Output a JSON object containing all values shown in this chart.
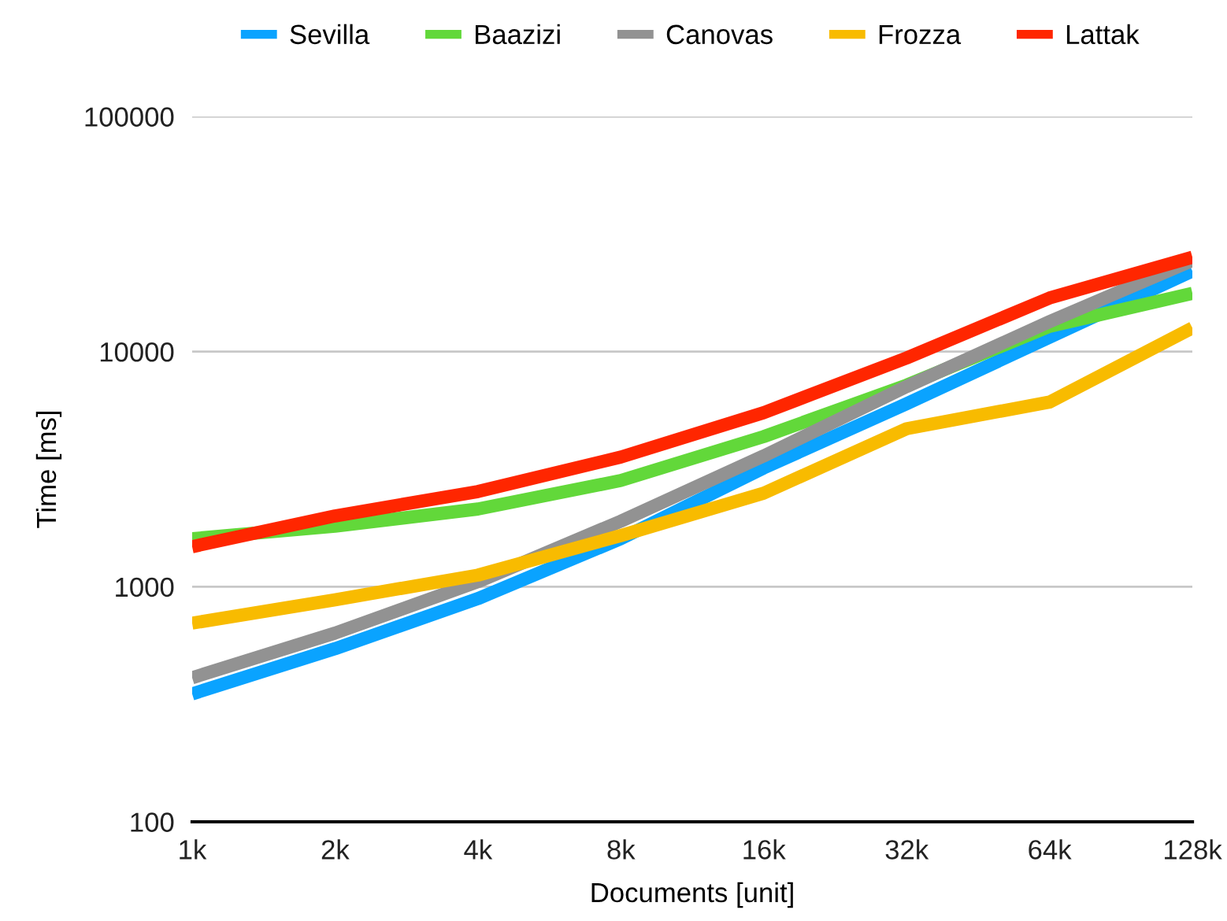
{
  "chart_data": {
    "type": "line",
    "xlabel": "Documents [unit]",
    "ylabel": "Time [ms]",
    "categories": [
      "1k",
      "2k",
      "4k",
      "8k",
      "16k",
      "32k",
      "64k",
      "128k"
    ],
    "series": [
      {
        "name": "Sevilla",
        "color": "#0aa3ff",
        "values": [
          350,
          545,
          890,
          1600,
          3200,
          6000,
          11500,
          22000
        ]
      },
      {
        "name": "Baazizi",
        "color": "#62d83a",
        "values": [
          1600,
          1810,
          2140,
          2830,
          4350,
          7200,
          12800,
          17700
        ]
      },
      {
        "name": "Canovas",
        "color": "#929292",
        "values": [
          410,
          635,
          1050,
          1900,
          3600,
          7100,
          13400,
          24400
        ]
      },
      {
        "name": "Frozza",
        "color": "#f8bb00",
        "values": [
          700,
          880,
          1120,
          1650,
          2500,
          4700,
          6100,
          12600
        ]
      },
      {
        "name": "Lattak",
        "color": "#ff2600",
        "values": [
          1480,
          2000,
          2540,
          3560,
          5500,
          9400,
          16900,
          25200
        ]
      }
    ],
    "log": "y",
    "ylim": [
      100,
      100000
    ],
    "yticks": [
      100,
      1000,
      10000,
      100000
    ],
    "grid": "y",
    "legend": "top",
    "line_style": "solid",
    "marker": "none"
  }
}
